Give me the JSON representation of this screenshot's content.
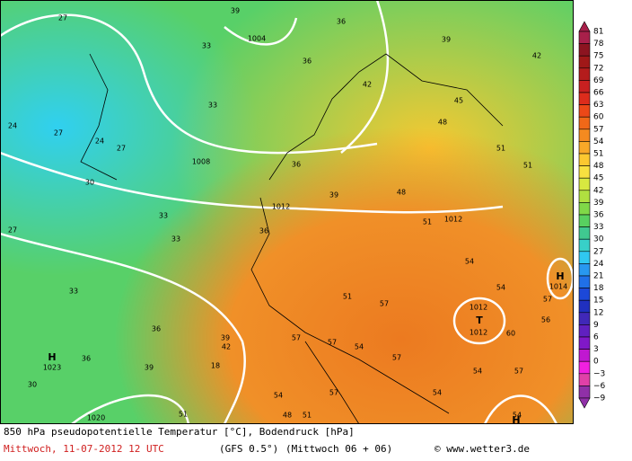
{
  "map": {
    "labels": [
      "1004",
      "1008",
      "1012",
      "1012",
      "1012",
      "1012",
      "1014",
      "1020",
      "1023",
      "H",
      "H",
      "T",
      "H",
      "27",
      "39",
      "36",
      "39",
      "42",
      "33",
      "36",
      "42",
      "24",
      "27",
      "24",
      "27",
      "33",
      "45",
      "48",
      "51",
      "51",
      "48",
      "39",
      "36",
      "33",
      "33",
      "36",
      "51",
      "54",
      "54",
      "57",
      "56",
      "60",
      "51",
      "57",
      "33",
      "36",
      "39",
      "42",
      "36",
      "39",
      "18",
      "57",
      "57",
      "54",
      "57",
      "54",
      "57",
      "30",
      "54",
      "57",
      "54",
      "48",
      "51",
      "51",
      "54",
      "27",
      "30"
    ]
  },
  "legend": {
    "ticks": [
      "81",
      "78",
      "75",
      "72",
      "69",
      "66",
      "63",
      "60",
      "57",
      "54",
      "51",
      "48",
      "45",
      "42",
      "39",
      "36",
      "33",
      "30",
      "27",
      "24",
      "21",
      "18",
      "15",
      "12",
      "9",
      "6",
      "3",
      "0",
      "−3",
      "−6",
      "−9"
    ],
    "colors": [
      "#a8204a",
      "#8c1420",
      "#a01818",
      "#b41c1c",
      "#c82020",
      "#dc2c1c",
      "#ec4818",
      "#f06818",
      "#f48a20",
      "#f8a828",
      "#fcc830",
      "#f8e040",
      "#d8e840",
      "#b0e040",
      "#80d848",
      "#58d060",
      "#40c890",
      "#38d0c8",
      "#30c8f0",
      "#2898f0",
      "#2070e8",
      "#1c48d8",
      "#2030c0",
      "#4028b8",
      "#6020c0",
      "#8018c8",
      "#c018d0",
      "#f020e0",
      "#e040a8",
      "#9030a8"
    ]
  },
  "footer": {
    "line1": "850 hPa pseudopotentielle Temperatur [°C], Bodendruck [hPa]",
    "date": "Mittwoch, 11-07-2012  12 UTC",
    "model": "(GFS 0.5°)",
    "run": "(Mittwoch 06 + 06)",
    "credit": "© www.wetter3.de"
  }
}
